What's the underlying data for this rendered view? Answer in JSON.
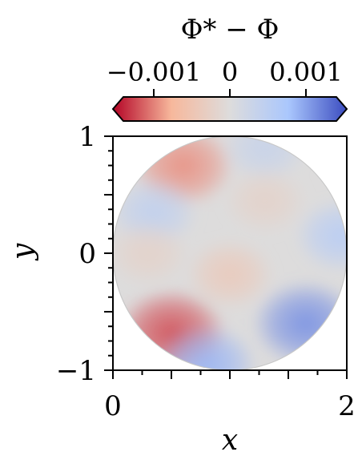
{
  "chart_data": {
    "type": "heatmap",
    "title": "",
    "colorbar": {
      "label": "Φ* − Φ",
      "min": -0.0014,
      "max": 0.0014,
      "ticks": [
        -0.001,
        0,
        0.001
      ],
      "tick_labels": [
        "−0.001",
        "0",
        "0.001"
      ],
      "extend": "both",
      "colormap": "coolwarm",
      "placement": "top",
      "cmap_stops": [
        "#b40426",
        "#f7b89c",
        "#dddcdc",
        "#aac7fd",
        "#3b4cc0"
      ]
    },
    "xlabel": "x",
    "ylabel": "y",
    "xlim": [
      0,
      2
    ],
    "ylim": [
      -1,
      1
    ],
    "x_ticks": [
      0,
      2
    ],
    "x_tick_labels": [
      "0",
      "2"
    ],
    "y_ticks": [
      -1,
      0,
      1
    ],
    "y_tick_labels": [
      "−1",
      "0",
      "1"
    ],
    "domain": {
      "shape": "circle",
      "center": [
        1,
        0
      ],
      "radius": 1
    },
    "features": [
      {
        "x": 0.6,
        "y": 0.75,
        "value": -0.00085
      },
      {
        "x": 0.5,
        "y": -0.68,
        "value": -0.0011
      },
      {
        "x": 1.0,
        "y": -0.18,
        "value": -0.00035
      },
      {
        "x": 0.35,
        "y": 0.35,
        "value": 0.0004
      },
      {
        "x": 1.65,
        "y": -0.6,
        "value": 0.001
      },
      {
        "x": 0.8,
        "y": -0.95,
        "value": 0.0008
      },
      {
        "x": 1.95,
        "y": 0.15,
        "value": 0.0005
      },
      {
        "x": 1.3,
        "y": 0.9,
        "value": 0.0003
      },
      {
        "x": 1.3,
        "y": 0.45,
        "value": -0.0002
      },
      {
        "x": 0.3,
        "y": 0.0,
        "value": -0.0002
      }
    ]
  }
}
